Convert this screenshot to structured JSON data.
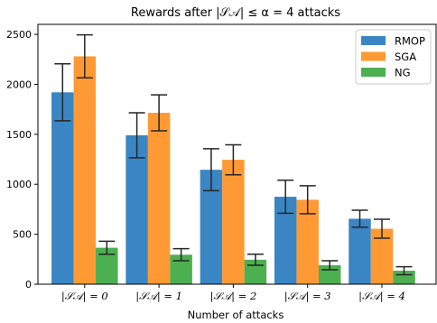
{
  "chart_data": {
    "type": "bar",
    "title": "Rewards after |𝒮𝒜| ≤ α = 4 attacks",
    "xlabel": "Number of attacks",
    "ylabel": "",
    "categories": [
      "|𝒮𝒜| = 0",
      "|𝒮𝒜| = 1",
      "|𝒮𝒜| = 2",
      "|𝒮𝒜| = 3",
      "|𝒮𝒜| = 4"
    ],
    "ylim": [
      0,
      2600
    ],
    "yticks": [
      0,
      500,
      1000,
      1500,
      2000,
      2500
    ],
    "grid": false,
    "legend_position": "top-right",
    "series": [
      {
        "name": "RMOP",
        "color": "#3a86c4",
        "values": [
          1920,
          1490,
          1145,
          875,
          655
        ],
        "errors": [
          285,
          225,
          210,
          165,
          85
        ]
      },
      {
        "name": "SGA",
        "color": "#ff9933",
        "values": [
          2280,
          1715,
          1245,
          845,
          555
        ],
        "errors": [
          215,
          180,
          150,
          140,
          95
        ]
      },
      {
        "name": "NG",
        "color": "#4caf50",
        "values": [
          365,
          295,
          245,
          190,
          135
        ],
        "errors": [
          65,
          60,
          55,
          45,
          40
        ]
      }
    ]
  }
}
